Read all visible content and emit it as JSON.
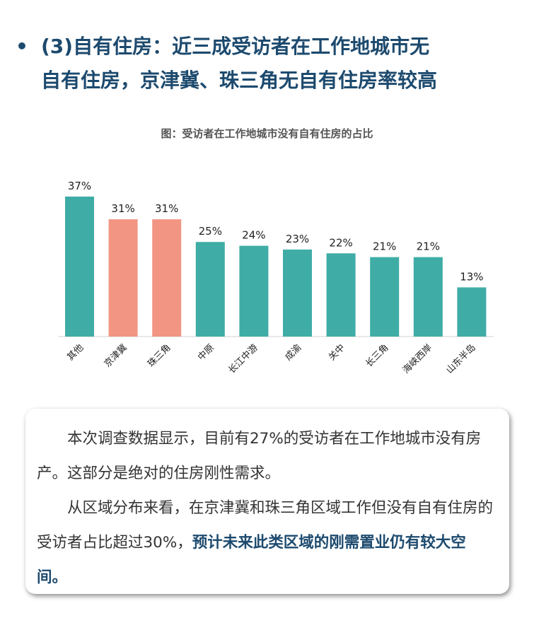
{
  "headline": {
    "bullet": "•",
    "line1": "(3)自有住房：近三成受访者在工作地城市无",
    "line2": "自有住房，京津冀、珠三角无自有住房率较高"
  },
  "chart_data": {
    "type": "bar",
    "title": "图：受访者在工作地城市没有自有住房的占比",
    "categories": [
      "其他",
      "京津冀",
      "珠三角",
      "中原",
      "长江中游",
      "成渝",
      "关中",
      "长三角",
      "海峡西岸",
      "山东半岛"
    ],
    "values": [
      37,
      31,
      31,
      25,
      24,
      23,
      22,
      21,
      21,
      13
    ],
    "value_labels": [
      "37%",
      "31%",
      "31%",
      "25%",
      "24%",
      "23%",
      "22%",
      "21%",
      "21%",
      "13%"
    ],
    "unit": "%",
    "highlight": [
      "京津冀",
      "珠三角"
    ],
    "colors": {
      "default": "#3fada6",
      "highlight": "#f29583"
    },
    "ylim": [
      0,
      40
    ],
    "grid": false,
    "legend": "none"
  },
  "body": {
    "p1": "本次调查数据显示，目前有27%的受访者在工作地城市没有房产。这部分是绝对的住房刚性需求。",
    "p2_normal": "从区域分布来看，在京津冀和珠三角区域工作但没有自有住房的受访者占比超过30%，",
    "p2_bold": "预计未来此类区域的刚需置业仍有较大空间。"
  }
}
